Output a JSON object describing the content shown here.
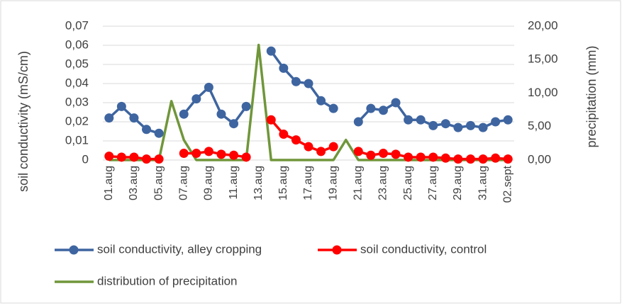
{
  "chart_data": {
    "type": "line",
    "categories": [
      "01.aug",
      null,
      "03.aug",
      null,
      "05.aug",
      null,
      "07.aug",
      null,
      "09.aug",
      null,
      "11.aug",
      null,
      "13.aug",
      null,
      "15.aug",
      null,
      "17.aug",
      null,
      "19.aug",
      null,
      "21.aug",
      null,
      "23.aug",
      null,
      "25.aug",
      null,
      "27.aug",
      null,
      "29.aug",
      null,
      "31.aug",
      null,
      "02.sept"
    ],
    "ylabel": "soil conductivity (mS/cm)",
    "y2label": "precipitation (mm)",
    "ylim": [
      0,
      0.07
    ],
    "yticks": [
      0,
      {
        "value": 0.01,
        "label": "0,01"
      },
      {
        "value": 0.02,
        "label": "0,02"
      },
      {
        "value": 0.03,
        "label": "0,03"
      },
      {
        "value": 0.04,
        "label": "0,04"
      },
      {
        "value": 0.05,
        "label": "0,05"
      },
      {
        "value": 0.06,
        "label": "0,06"
      },
      {
        "value": 0.07,
        "label": "0,07"
      }
    ],
    "y2lim": [
      0,
      20
    ],
    "y2ticks": [
      {
        "value": 0,
        "label": "0,00"
      },
      {
        "value": 5,
        "label": "5,00"
      },
      {
        "value": 10,
        "label": "10,00"
      },
      {
        "value": 15,
        "label": "15,00"
      },
      {
        "value": 20,
        "label": "20,00"
      }
    ],
    "grid": true,
    "legend": "bottom",
    "series": [
      {
        "name": "soil conductivity, alley cropping",
        "color": "#3e65a0",
        "marker": true,
        "values": [
          0.022,
          0.028,
          0.022,
          0.016,
          0.014,
          null,
          0.024,
          0.032,
          0.038,
          0.024,
          0.019,
          0.028,
          null,
          0.057,
          0.048,
          0.041,
          0.04,
          0.031,
          0.027,
          null,
          0.02,
          0.027,
          0.026,
          0.03,
          0.021,
          0.021,
          0.018,
          0.019,
          0.017,
          0.018,
          0.017,
          0.02,
          0.021
        ]
      },
      {
        "name": "soil conductivity, control",
        "color": "#ff0000",
        "marker": true,
        "values": [
          0.002,
          0.0015,
          0.0015,
          0.0005,
          0.0005,
          null,
          0.0035,
          0.0035,
          0.0045,
          0.003,
          0.0025,
          0.0015,
          null,
          0.021,
          0.0135,
          0.0105,
          0.007,
          0.0045,
          0.007,
          null,
          0.0045,
          0.0025,
          0.0035,
          0.003,
          0.0015,
          0.0015,
          0.0015,
          0.001,
          0.0005,
          0.0005,
          0.0005,
          0.001,
          0.0005
        ]
      },
      {
        "name": "distribution of precipitation",
        "color": "#70963a",
        "marker": false,
        "axis": "y2",
        "values": [
          0,
          0,
          0,
          0,
          0,
          8.8,
          3.0,
          0,
          0,
          0,
          0,
          0,
          17.2,
          0,
          0,
          0,
          0,
          0,
          0,
          3.0,
          0,
          0,
          0,
          0,
          0,
          0,
          0,
          0,
          0,
          0,
          0,
          0,
          0
        ]
      }
    ]
  }
}
